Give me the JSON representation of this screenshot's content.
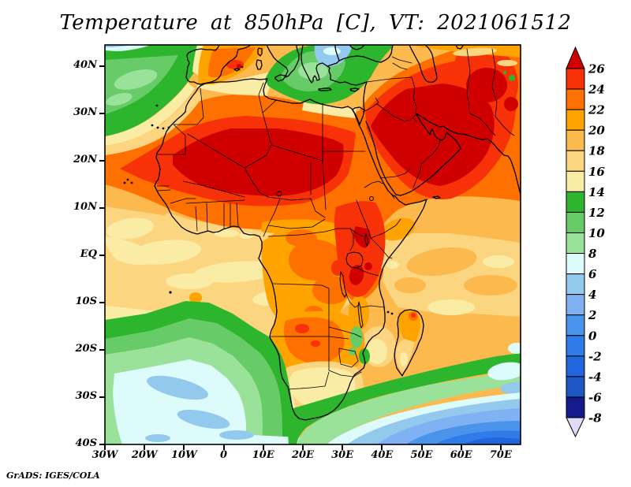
{
  "title": "Temperature at 850hPa [C], VT: 2021061512",
  "credit": "GrADS: IGES/COLA",
  "variable": "Temperature",
  "level": "850hPa",
  "units": "C",
  "valid_time": "2021061512",
  "x_axis": {
    "ticks": [
      {
        "label": "30W",
        "lon": -30
      },
      {
        "label": "20W",
        "lon": -20
      },
      {
        "label": "10W",
        "lon": -10
      },
      {
        "label": "0",
        "lon": 0
      },
      {
        "label": "10E",
        "lon": 10
      },
      {
        "label": "20E",
        "lon": 20
      },
      {
        "label": "30E",
        "lon": 30
      },
      {
        "label": "40E",
        "lon": 40
      },
      {
        "label": "50E",
        "lon": 50
      },
      {
        "label": "60E",
        "lon": 60
      },
      {
        "label": "70E",
        "lon": 70
      }
    ]
  },
  "y_axis": {
    "ticks": [
      {
        "label": "40N",
        "lat": 40
      },
      {
        "label": "30N",
        "lat": 30
      },
      {
        "label": "20N",
        "lat": 20
      },
      {
        "label": "10N",
        "lat": 10
      },
      {
        "label": "EQ",
        "lat": 0
      },
      {
        "label": "10S",
        "lat": -10
      },
      {
        "label": "20S",
        "lat": -20
      },
      {
        "label": "30S",
        "lat": -30
      },
      {
        "label": "40S",
        "lat": -40
      }
    ]
  },
  "colorbar": {
    "labels_top_to_bottom": [
      "26",
      "24",
      "22",
      "20",
      "18",
      "16",
      "14",
      "12",
      "10",
      "8",
      "6",
      "4",
      "2",
      "0",
      "-2",
      "-4",
      "-6",
      "-8"
    ],
    "levels_ascending": [
      -8,
      -6,
      -4,
      -2,
      0,
      2,
      4,
      6,
      8,
      10,
      12,
      14,
      16,
      18,
      20,
      22,
      24,
      26
    ],
    "colors_ascending": [
      "#dedcf6",
      "#141b8b",
      "#1e56c4",
      "#2166dc",
      "#2f7ce9",
      "#4b94ec",
      "#80b1f2",
      "#94c9ee",
      "#dcfbfa",
      "#9ae29a",
      "#67cb67",
      "#2eb52e",
      "#fbeca5",
      "#fcd581",
      "#fcb94d",
      "#ffa300",
      "#fe7000",
      "#f83208",
      "#d00000"
    ],
    "below_min_color": "#dedcf6",
    "above_max_color": "#d00000"
  },
  "chart_data": {
    "type": "heatmap",
    "title": "Temperature at 850hPa [C], VT: 2021061512",
    "field": "air temperature at 850 hPa",
    "units": "degrees Celsius",
    "region": {
      "lon_min": -30,
      "lon_max": 75,
      "lat_min": -40,
      "lat_max": 44.5
    },
    "x_tick_labels": [
      "30W",
      "20W",
      "10W",
      "0",
      "10E",
      "20E",
      "30E",
      "40E",
      "50E",
      "60E",
      "70E"
    ],
    "y_tick_labels": [
      "40N",
      "30N",
      "20N",
      "10N",
      "EQ",
      "10S",
      "20S",
      "30S",
      "40S"
    ],
    "contour_interval_c": 2,
    "contour_levels_c": [
      -8,
      -6,
      -4,
      -2,
      0,
      2,
      4,
      6,
      8,
      10,
      12,
      14,
      16,
      18,
      20,
      22,
      24,
      26
    ],
    "palette_ascending": [
      "#dedcf6",
      "#141b8b",
      "#1e56c4",
      "#2166dc",
      "#2f7ce9",
      "#4b94ec",
      "#80b1f2",
      "#94c9ee",
      "#dcfbfa",
      "#9ae29a",
      "#67cb67",
      "#2eb52e",
      "#fbeca5",
      "#fcd581",
      "#fcb94d",
      "#ffa300",
      "#fe7000",
      "#f83208",
      "#d00000"
    ],
    "legend_position": "right",
    "sampled_grid": {
      "lons_deg_east": [
        -30,
        -20,
        -10,
        0,
        10,
        20,
        30,
        40,
        50,
        60,
        70
      ],
      "lats_deg_north": [
        40,
        30,
        20,
        10,
        0,
        -10,
        -20,
        -30,
        -40
      ],
      "temps_c": [
        [
          13,
          13,
          15,
          23,
          15,
          13,
          5,
          20,
          21,
          25,
          24
        ],
        [
          12,
          14,
          16,
          22,
          22,
          25,
          23,
          25,
          26,
          26,
          25
        ],
        [
          17,
          19,
          26,
          27,
          27,
          27,
          26,
          25,
          27,
          26,
          24
        ],
        [
          19,
          20,
          21,
          22,
          23,
          25,
          26,
          25,
          24,
          21,
          19
        ],
        [
          17,
          17,
          18,
          19,
          21,
          22,
          25,
          22,
          18,
          17,
          17
        ],
        [
          15,
          16,
          16,
          18,
          21,
          22,
          24,
          20,
          17,
          16,
          16
        ],
        [
          12,
          13,
          13,
          14,
          19,
          21,
          18,
          15,
          14,
          14,
          14
        ],
        [
          9,
          9,
          8,
          8,
          9,
          14,
          16,
          11,
          8,
          7,
          7
        ],
        [
          8,
          8,
          8,
          7,
          7,
          5,
          3,
          1,
          0,
          2,
          3
        ]
      ]
    }
  }
}
